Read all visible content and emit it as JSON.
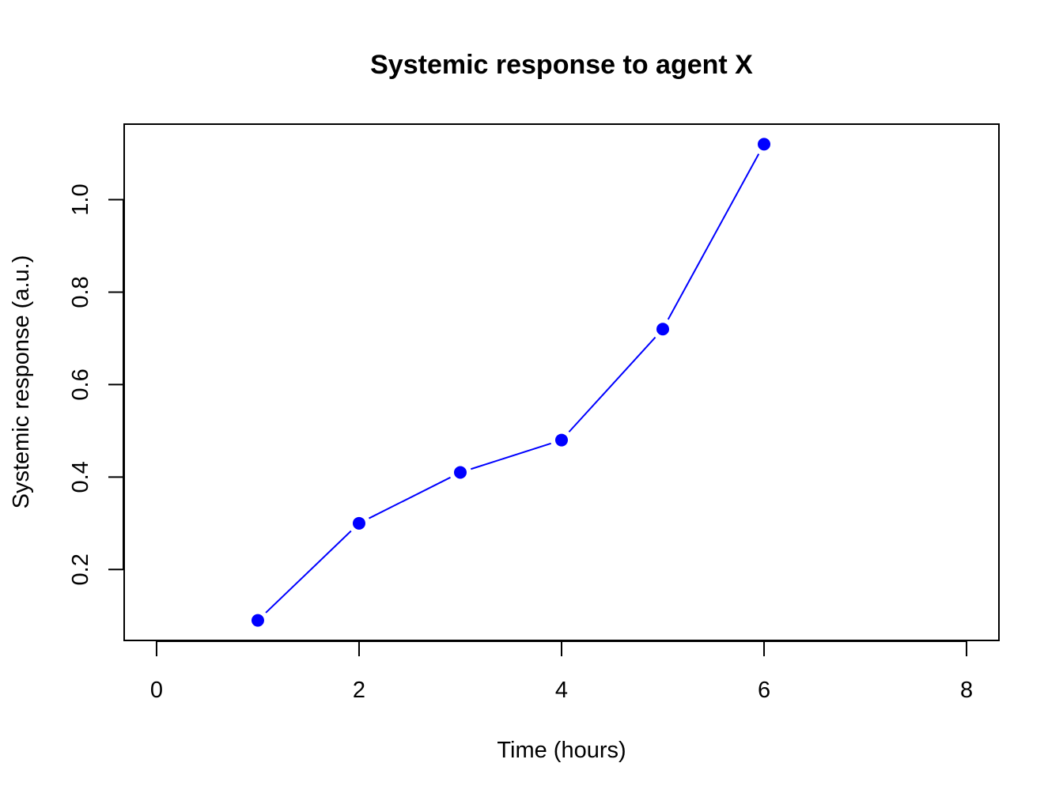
{
  "chart_data": {
    "type": "line",
    "title": "Systemic response to agent X",
    "xlabel": "Time (hours)",
    "ylabel": "Systemic response (a.u.)",
    "x_ticks": [
      0,
      2,
      4,
      6,
      8
    ],
    "y_ticks": [
      "0.2",
      "0.4",
      "0.6",
      "0.8",
      "1.0"
    ],
    "xlim": [
      -0.32,
      8.32
    ],
    "ylim": [
      0.0466,
      1.1634
    ],
    "grid": false,
    "series": [
      {
        "x": [
          1,
          2,
          3,
          4,
          5,
          6
        ],
        "y": [
          0.09,
          0.3,
          0.41,
          0.48,
          0.72,
          1.12
        ],
        "color": "#0000ff",
        "style": "line with filled circle markers"
      }
    ]
  }
}
